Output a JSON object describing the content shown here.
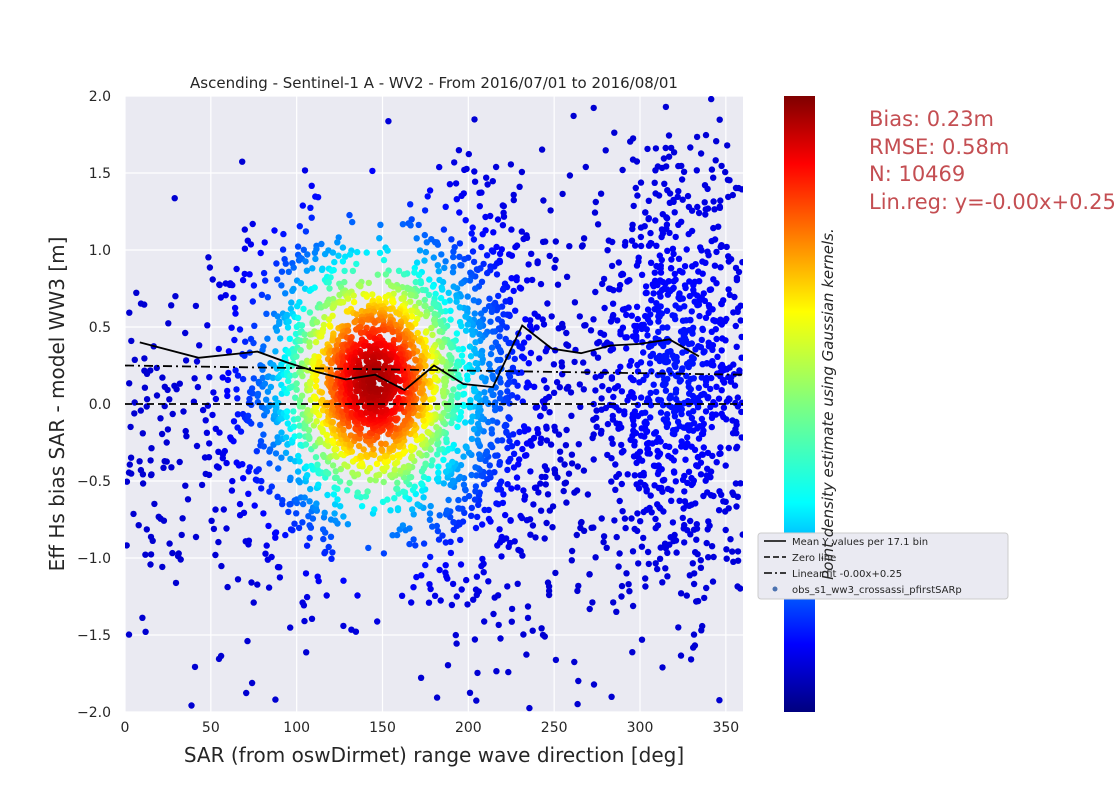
{
  "chart_data": {
    "type": "scatter",
    "title": "Ascending - Sentinel-1 A - WV2 - From 2016/07/01 to 2016/08/01",
    "xlabel": "SAR (from oswDirmet) range wave direction [deg]",
    "ylabel": "Eff Hs bias SAR - model WW3 [m]",
    "xlim": [
      0,
      360
    ],
    "ylim": [
      -2.0,
      2.0
    ],
    "xticks": [
      "0",
      "50",
      "100",
      "150",
      "200",
      "250",
      "300",
      "350"
    ],
    "yticks": [
      "−2.0",
      "−1.5",
      "−1.0",
      "−0.5",
      "0.0",
      "0.5",
      "1.0",
      "1.5",
      "2.0"
    ],
    "grid": true,
    "background_color": "#eaeaf2",
    "colormap": "jet",
    "colorbar_label": "Point density estimate using Gaussian kernels.",
    "point_count": 10469,
    "density_clusters": [
      {
        "x_center": 145,
        "y_center": 0.15,
        "x_spread": 35,
        "y_spread": 0.55
      },
      {
        "x_center": 215,
        "y_center": 0.1,
        "x_spread": 18,
        "y_spread": 0.8
      },
      {
        "x_center": 320,
        "y_center": 0.25,
        "x_spread": 30,
        "y_spread": 0.7
      }
    ],
    "series": [
      {
        "name": "Mean Y values per 17.1 bin",
        "style": "solid",
        "color": "#000000",
        "x": [
          8.6,
          42.9,
          77.1,
          94.3,
          111.4,
          128.6,
          145.7,
          162.9,
          180.0,
          197.1,
          214.3,
          231.4,
          248.6,
          265.7,
          282.9,
          300.0,
          317.1,
          334.3
        ],
        "y": [
          0.4,
          0.3,
          0.34,
          0.27,
          0.21,
          0.16,
          0.19,
          0.09,
          0.25,
          0.13,
          0.11,
          0.51,
          0.36,
          0.33,
          0.38,
          0.39,
          0.42,
          0.31
        ]
      },
      {
        "name": "Zero line",
        "style": "dashed",
        "color": "#000000",
        "x": [
          0,
          360
        ],
        "y": [
          0,
          0
        ]
      },
      {
        "name": "Linear fit -0.00x+0.25",
        "style": "dashdot",
        "color": "#000000",
        "x": [
          0,
          360
        ],
        "y": [
          0.25,
          0.19
        ]
      },
      {
        "name": "obs_s1_ww3_crossassi_pfirstSARp",
        "style": "points",
        "color": "#4c72b0"
      }
    ],
    "legend_placement": "right",
    "stats": [
      "Bias: 0.23m",
      "RMSE: 0.58m",
      "N: 10469",
      "Lin.reg: y=-0.00x+0.25"
    ]
  }
}
